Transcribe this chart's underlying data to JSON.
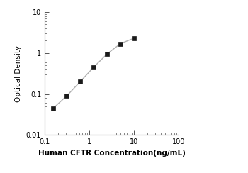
{
  "x": [
    0.156,
    0.3125,
    0.625,
    1.25,
    2.5,
    5.0,
    10.0
  ],
  "y": [
    0.045,
    0.09,
    0.2,
    0.45,
    0.95,
    1.7,
    2.3
  ],
  "xlabel": "Human CFTR Concentration(ng/mL)",
  "ylabel": "Optical Density",
  "xlim": [
    0.1,
    100
  ],
  "ylim": [
    0.01,
    10
  ],
  "line_color": "#b0b0b0",
  "marker_color": "#1a1a1a",
  "marker": "s",
  "marker_size": 4.5,
  "line_width": 1.0,
  "background_color": "#ffffff",
  "xlabel_fontsize": 7.5,
  "ylabel_fontsize": 7.5,
  "tick_fontsize": 7,
  "xlabel_fontweight": "bold"
}
